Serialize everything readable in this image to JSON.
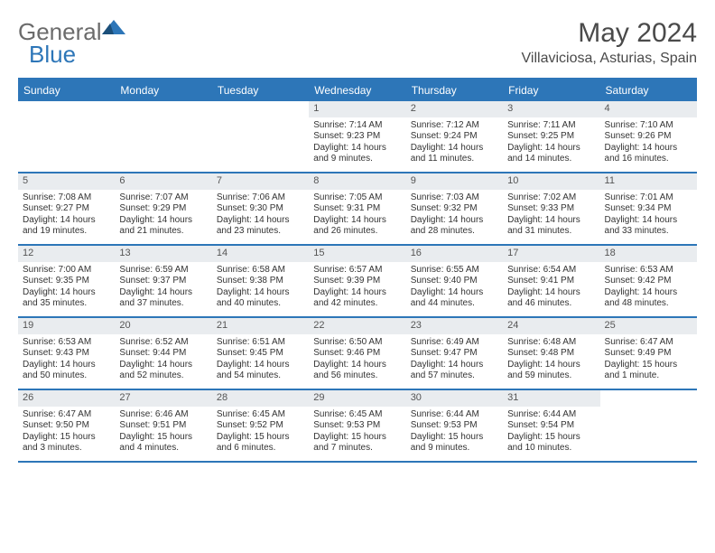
{
  "brand": {
    "part1": "General",
    "part2": "Blue"
  },
  "title": "May 2024",
  "location": "Villaviciosa, Asturias, Spain",
  "colors": {
    "header_bg": "#2d76b8",
    "header_text": "#ffffff",
    "daynum_bg": "#e9ecef",
    "body_text": "#333333",
    "brand_gray": "#6b6b6b",
    "brand_blue": "#2d76b8"
  },
  "weekdays": [
    "Sunday",
    "Monday",
    "Tuesday",
    "Wednesday",
    "Thursday",
    "Friday",
    "Saturday"
  ],
  "weeks": [
    [
      {
        "num": "",
        "sunrise": "",
        "sunset": "",
        "day1": "",
        "day2": ""
      },
      {
        "num": "",
        "sunrise": "",
        "sunset": "",
        "day1": "",
        "day2": ""
      },
      {
        "num": "",
        "sunrise": "",
        "sunset": "",
        "day1": "",
        "day2": ""
      },
      {
        "num": "1",
        "sunrise": "Sunrise: 7:14 AM",
        "sunset": "Sunset: 9:23 PM",
        "day1": "Daylight: 14 hours",
        "day2": "and 9 minutes."
      },
      {
        "num": "2",
        "sunrise": "Sunrise: 7:12 AM",
        "sunset": "Sunset: 9:24 PM",
        "day1": "Daylight: 14 hours",
        "day2": "and 11 minutes."
      },
      {
        "num": "3",
        "sunrise": "Sunrise: 7:11 AM",
        "sunset": "Sunset: 9:25 PM",
        "day1": "Daylight: 14 hours",
        "day2": "and 14 minutes."
      },
      {
        "num": "4",
        "sunrise": "Sunrise: 7:10 AM",
        "sunset": "Sunset: 9:26 PM",
        "day1": "Daylight: 14 hours",
        "day2": "and 16 minutes."
      }
    ],
    [
      {
        "num": "5",
        "sunrise": "Sunrise: 7:08 AM",
        "sunset": "Sunset: 9:27 PM",
        "day1": "Daylight: 14 hours",
        "day2": "and 19 minutes."
      },
      {
        "num": "6",
        "sunrise": "Sunrise: 7:07 AM",
        "sunset": "Sunset: 9:29 PM",
        "day1": "Daylight: 14 hours",
        "day2": "and 21 minutes."
      },
      {
        "num": "7",
        "sunrise": "Sunrise: 7:06 AM",
        "sunset": "Sunset: 9:30 PM",
        "day1": "Daylight: 14 hours",
        "day2": "and 23 minutes."
      },
      {
        "num": "8",
        "sunrise": "Sunrise: 7:05 AM",
        "sunset": "Sunset: 9:31 PM",
        "day1": "Daylight: 14 hours",
        "day2": "and 26 minutes."
      },
      {
        "num": "9",
        "sunrise": "Sunrise: 7:03 AM",
        "sunset": "Sunset: 9:32 PM",
        "day1": "Daylight: 14 hours",
        "day2": "and 28 minutes."
      },
      {
        "num": "10",
        "sunrise": "Sunrise: 7:02 AM",
        "sunset": "Sunset: 9:33 PM",
        "day1": "Daylight: 14 hours",
        "day2": "and 31 minutes."
      },
      {
        "num": "11",
        "sunrise": "Sunrise: 7:01 AM",
        "sunset": "Sunset: 9:34 PM",
        "day1": "Daylight: 14 hours",
        "day2": "and 33 minutes."
      }
    ],
    [
      {
        "num": "12",
        "sunrise": "Sunrise: 7:00 AM",
        "sunset": "Sunset: 9:35 PM",
        "day1": "Daylight: 14 hours",
        "day2": "and 35 minutes."
      },
      {
        "num": "13",
        "sunrise": "Sunrise: 6:59 AM",
        "sunset": "Sunset: 9:37 PM",
        "day1": "Daylight: 14 hours",
        "day2": "and 37 minutes."
      },
      {
        "num": "14",
        "sunrise": "Sunrise: 6:58 AM",
        "sunset": "Sunset: 9:38 PM",
        "day1": "Daylight: 14 hours",
        "day2": "and 40 minutes."
      },
      {
        "num": "15",
        "sunrise": "Sunrise: 6:57 AM",
        "sunset": "Sunset: 9:39 PM",
        "day1": "Daylight: 14 hours",
        "day2": "and 42 minutes."
      },
      {
        "num": "16",
        "sunrise": "Sunrise: 6:55 AM",
        "sunset": "Sunset: 9:40 PM",
        "day1": "Daylight: 14 hours",
        "day2": "and 44 minutes."
      },
      {
        "num": "17",
        "sunrise": "Sunrise: 6:54 AM",
        "sunset": "Sunset: 9:41 PM",
        "day1": "Daylight: 14 hours",
        "day2": "and 46 minutes."
      },
      {
        "num": "18",
        "sunrise": "Sunrise: 6:53 AM",
        "sunset": "Sunset: 9:42 PM",
        "day1": "Daylight: 14 hours",
        "day2": "and 48 minutes."
      }
    ],
    [
      {
        "num": "19",
        "sunrise": "Sunrise: 6:53 AM",
        "sunset": "Sunset: 9:43 PM",
        "day1": "Daylight: 14 hours",
        "day2": "and 50 minutes."
      },
      {
        "num": "20",
        "sunrise": "Sunrise: 6:52 AM",
        "sunset": "Sunset: 9:44 PM",
        "day1": "Daylight: 14 hours",
        "day2": "and 52 minutes."
      },
      {
        "num": "21",
        "sunrise": "Sunrise: 6:51 AM",
        "sunset": "Sunset: 9:45 PM",
        "day1": "Daylight: 14 hours",
        "day2": "and 54 minutes."
      },
      {
        "num": "22",
        "sunrise": "Sunrise: 6:50 AM",
        "sunset": "Sunset: 9:46 PM",
        "day1": "Daylight: 14 hours",
        "day2": "and 56 minutes."
      },
      {
        "num": "23",
        "sunrise": "Sunrise: 6:49 AM",
        "sunset": "Sunset: 9:47 PM",
        "day1": "Daylight: 14 hours",
        "day2": "and 57 minutes."
      },
      {
        "num": "24",
        "sunrise": "Sunrise: 6:48 AM",
        "sunset": "Sunset: 9:48 PM",
        "day1": "Daylight: 14 hours",
        "day2": "and 59 minutes."
      },
      {
        "num": "25",
        "sunrise": "Sunrise: 6:47 AM",
        "sunset": "Sunset: 9:49 PM",
        "day1": "Daylight: 15 hours",
        "day2": "and 1 minute."
      }
    ],
    [
      {
        "num": "26",
        "sunrise": "Sunrise: 6:47 AM",
        "sunset": "Sunset: 9:50 PM",
        "day1": "Daylight: 15 hours",
        "day2": "and 3 minutes."
      },
      {
        "num": "27",
        "sunrise": "Sunrise: 6:46 AM",
        "sunset": "Sunset: 9:51 PM",
        "day1": "Daylight: 15 hours",
        "day2": "and 4 minutes."
      },
      {
        "num": "28",
        "sunrise": "Sunrise: 6:45 AM",
        "sunset": "Sunset: 9:52 PM",
        "day1": "Daylight: 15 hours",
        "day2": "and 6 minutes."
      },
      {
        "num": "29",
        "sunrise": "Sunrise: 6:45 AM",
        "sunset": "Sunset: 9:53 PM",
        "day1": "Daylight: 15 hours",
        "day2": "and 7 minutes."
      },
      {
        "num": "30",
        "sunrise": "Sunrise: 6:44 AM",
        "sunset": "Sunset: 9:53 PM",
        "day1": "Daylight: 15 hours",
        "day2": "and 9 minutes."
      },
      {
        "num": "31",
        "sunrise": "Sunrise: 6:44 AM",
        "sunset": "Sunset: 9:54 PM",
        "day1": "Daylight: 15 hours",
        "day2": "and 10 minutes."
      },
      {
        "num": "",
        "sunrise": "",
        "sunset": "",
        "day1": "",
        "day2": ""
      }
    ]
  ]
}
